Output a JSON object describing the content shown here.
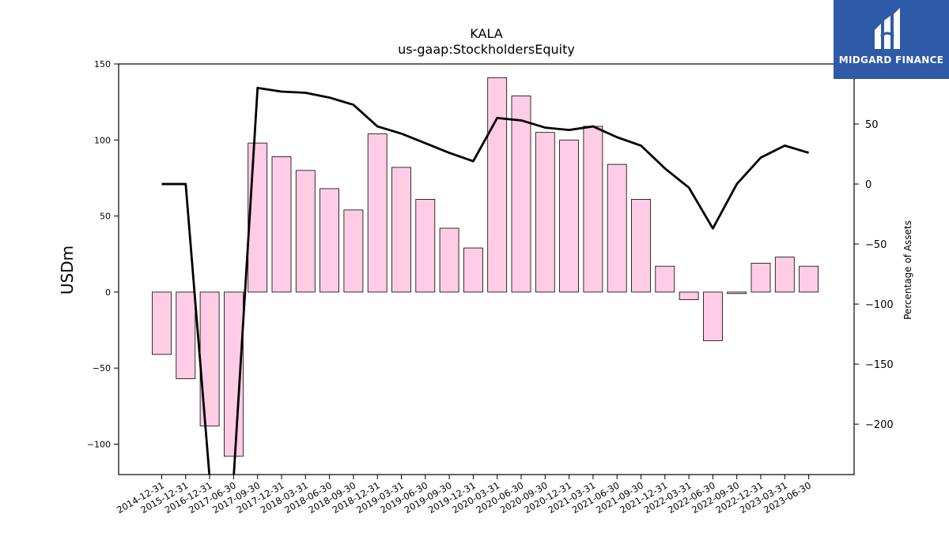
{
  "chart_data": {
    "type": "bar+line",
    "title": "KALA",
    "subtitle": "us-gaap:StockholdersEquity",
    "ylabel": "USDm",
    "y2label": "Percentage of Assets",
    "ylim": [
      -120,
      150
    ],
    "y2lim": [
      -242,
      100
    ],
    "yticks": [
      -100,
      -50,
      0,
      50,
      100,
      150
    ],
    "y2ticks": [
      -200,
      -150,
      -100,
      -50,
      0,
      50
    ],
    "categories": [
      "2014-12-31",
      "2015-12-31",
      "2016-12-31",
      "2017-06-30",
      "2017-09-30",
      "2017-12-31",
      "2018-03-31",
      "2018-06-30",
      "2018-09-30",
      "2018-12-31",
      "2019-03-31",
      "2019-06-30",
      "2019-09-30",
      "2019-12-31",
      "2020-03-31",
      "2020-06-30",
      "2020-09-30",
      "2020-12-31",
      "2021-03-31",
      "2021-06-30",
      "2021-09-30",
      "2021-12-31",
      "2022-03-31",
      "2022-06-30",
      "2022-09-30",
      "2022-12-31",
      "2023-03-31",
      "2023-06-30"
    ],
    "series": [
      {
        "type": "bar",
        "axis": "left",
        "color": "#ffcce6",
        "values": [
          -41,
          -57,
          -88,
          -108,
          98,
          89,
          80,
          68,
          54,
          104,
          82,
          61,
          42,
          29,
          141,
          129,
          105,
          100,
          109,
          84,
          61,
          17,
          -5,
          -32,
          -1,
          19,
          23,
          17
        ]
      },
      {
        "type": "line",
        "axis": "right",
        "color": "#000000",
        "values": [
          0,
          0,
          -245,
          -245,
          80,
          77,
          76,
          72,
          66,
          48,
          42,
          34,
          26,
          19,
          55,
          53,
          47,
          45,
          48,
          39,
          32,
          13,
          -3,
          -37,
          0,
          22,
          32,
          26
        ]
      }
    ]
  },
  "logo": {
    "text": "MIDGARD FINANCE",
    "color": "#2f5aa8"
  }
}
